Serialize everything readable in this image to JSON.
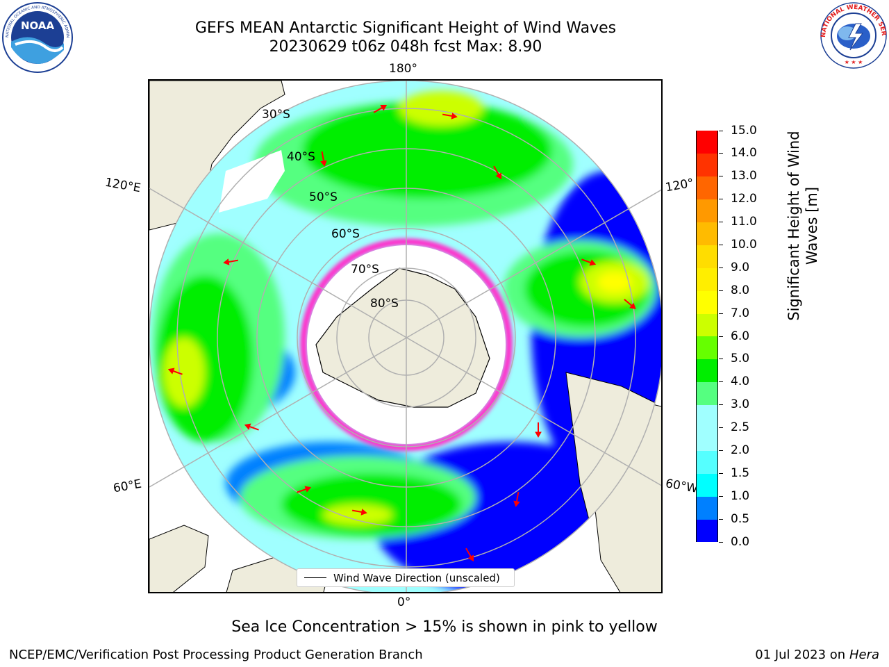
{
  "title": {
    "line1": "GEFS MEAN Antarctic Significant Height of Wind Waves",
    "line2": "20230629 t06z 048h fcst   Max: 8.90"
  },
  "logos": {
    "left": {
      "name": "noaa-logo",
      "text": "NOAA",
      "ring_text": "NATIONAL OCEANIC AND ATMOSPHERIC ADMINISTRATION · U.S. DEPARTMENT OF COMMERCE"
    },
    "right": {
      "name": "nws-logo",
      "ring_text": "NATIONAL WEATHER SERVICE"
    }
  },
  "map": {
    "longitude_labels": {
      "top": "180°",
      "bottom": "0°",
      "left_upper": "120°E",
      "left_lower": "60°E",
      "right_upper": "120°",
      "right_lower": "60°W"
    },
    "latitude_labels": [
      "30°S",
      "40°S",
      "50°S",
      "60°S",
      "70°S",
      "80°S"
    ],
    "legend_label": "Wind Wave Direction (unscaled)",
    "colors": {
      "land": "#eeecdc",
      "gridline": "#b0b0b0",
      "arrow": "#ff0000",
      "sea_ice": "#ff33cc"
    }
  },
  "colorbar": {
    "title": "Significant Height of Wind Waves [m]",
    "title_line1": "Significant Height of Wind",
    "title_line2": "Waves [m]",
    "ticks": [
      "0.0",
      "0.5",
      "1.0",
      "1.5",
      "2.0",
      "2.5",
      "3.0",
      "4.0",
      "5.0",
      "6.0",
      "7.0",
      "8.0",
      "9.0",
      "10.0",
      "11.0",
      "12.0",
      "13.0",
      "14.0",
      "15.0"
    ],
    "colors": [
      "#0000ff",
      "#0080ff",
      "#00ffff",
      "#55ffff",
      "#a0ffff",
      "#a0ffff",
      "#55ff80",
      "#00ee00",
      "#66ff00",
      "#ccff00",
      "#ffff00",
      "#ffee00",
      "#ffdd00",
      "#ffbb00",
      "#ff9900",
      "#ff6600",
      "#ff3300",
      "#ff0000"
    ]
  },
  "note": "Sea Ice Concentration > 15% is shown in pink to yellow",
  "footer": {
    "left": "NCEP/EMC/Verification Post Processing Product Generation Branch",
    "right_prefix": "01 Jul 2023 on ",
    "right_system": "Hera"
  }
}
